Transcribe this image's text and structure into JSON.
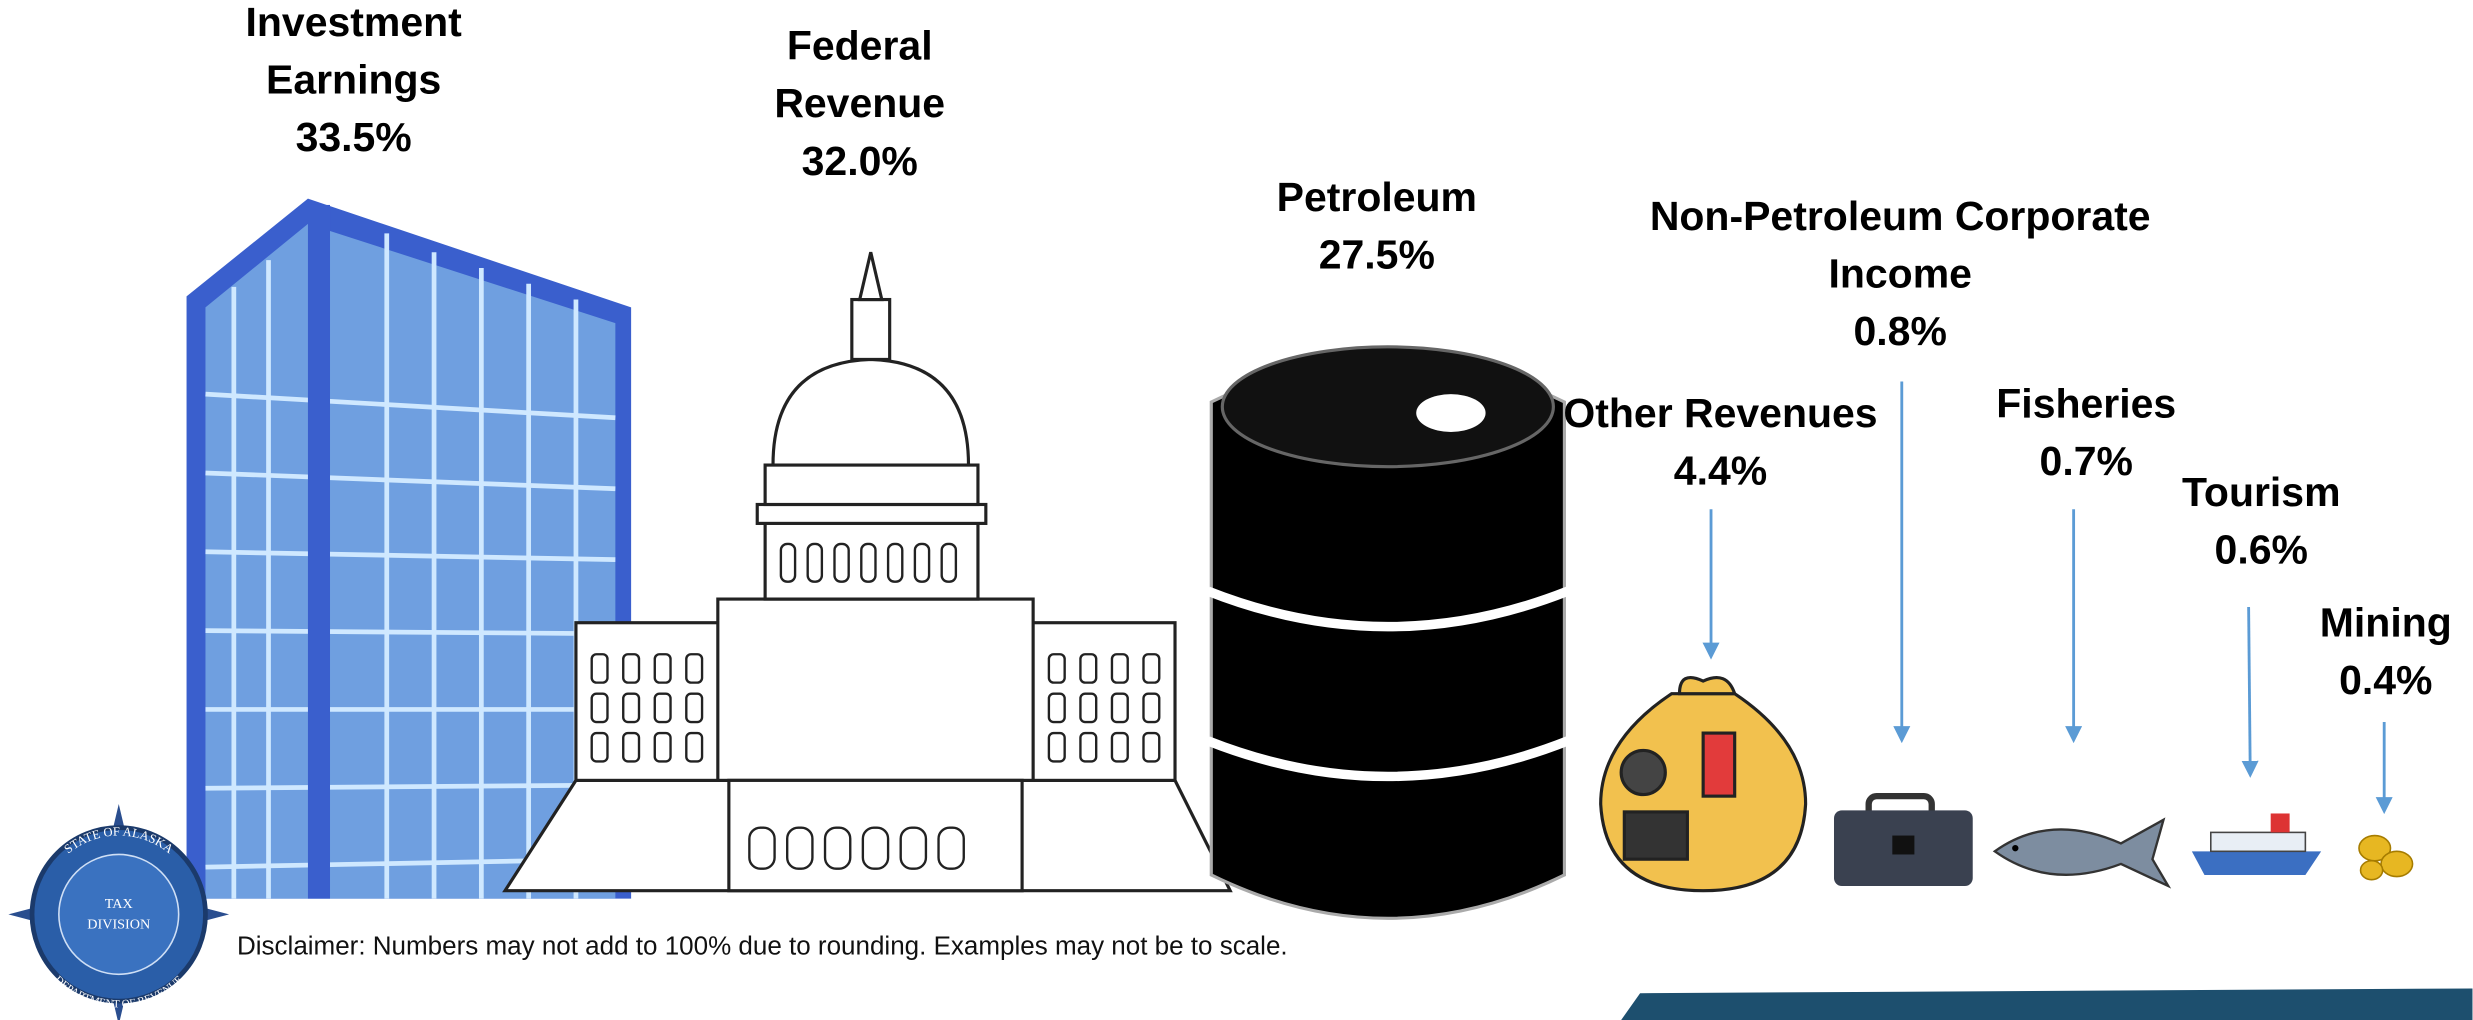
{
  "items": [
    {
      "label_lines": [
        "Investment",
        "Earnings"
      ],
      "value": "33.5%"
    },
    {
      "label_lines": [
        "Federal",
        "Revenue"
      ],
      "value": "32.0%"
    },
    {
      "label_lines": [
        "Petroleum"
      ],
      "value": "27.5%"
    },
    {
      "label_lines": [
        "Non-Petroleum Corporate",
        "Income"
      ],
      "value": "0.8%"
    },
    {
      "label_lines": [
        "Other Revenues"
      ],
      "value": "4.4%"
    },
    {
      "label_lines": [
        "Fisheries"
      ],
      "value": "0.7%"
    },
    {
      "label_lines": [
        "Tourism"
      ],
      "value": "0.6%"
    },
    {
      "label_lines": [
        "Mining"
      ],
      "value": "0.4%"
    }
  ],
  "seal": {
    "top": "STATE OF ALASKA",
    "center_lines": [
      "TAX",
      "DIVISION"
    ],
    "bottom": "DEPARTMENT OF REVENUE"
  },
  "disclaimer": "Disclaimer:  Numbers may not add to 100% due to rounding.  Examples may not be to scale."
}
